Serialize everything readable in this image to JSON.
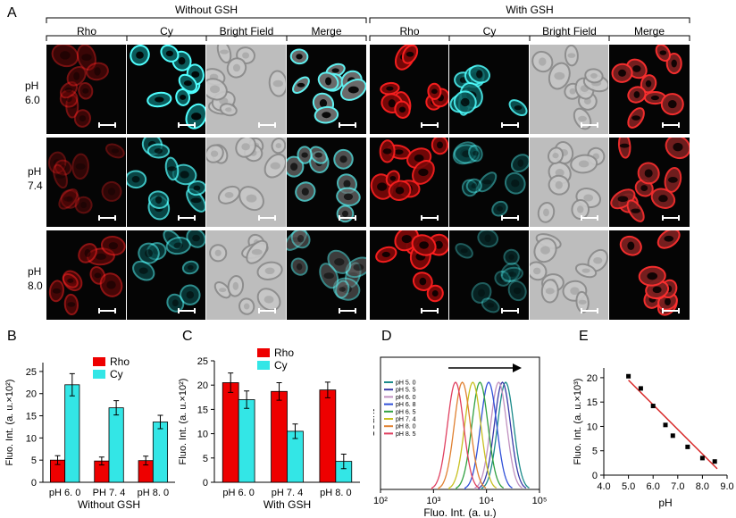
{
  "panel_letters": {
    "a": "A",
    "b": "B",
    "c": "C",
    "d": "D",
    "e": "E"
  },
  "groups": {
    "without": "Without GSH",
    "with": "With GSH"
  },
  "columns": [
    "Rho",
    "Cy",
    "Bright Field",
    "Merge",
    "Rho",
    "Cy",
    "Bright Field",
    "Merge"
  ],
  "rows": [
    {
      "label_top": "pH",
      "label_bot": "6.0"
    },
    {
      "label_top": "pH",
      "label_bot": "7.4"
    },
    {
      "label_top": "pH",
      "label_bot": "8.0"
    }
  ],
  "colors": {
    "rho": "#ee0000",
    "cy": "#33e6e6",
    "fit": "#d62020"
  },
  "chart_data": [
    {
      "panel": "B",
      "type": "bar",
      "categories": [
        "pH 6. 0",
        "PH 7. 4",
        "pH 8. 0"
      ],
      "series": [
        {
          "name": "Rho",
          "values": [
            5.0,
            4.8,
            4.9
          ],
          "errors": [
            1.0,
            0.9,
            1.0
          ]
        },
        {
          "name": "Cy",
          "values": [
            22.0,
            16.8,
            13.6
          ],
          "errors": [
            2.5,
            1.6,
            1.5
          ]
        }
      ],
      "ylabel": "Fluo. Int. (a. u.×10²)",
      "xlabel": "Without GSH",
      "ylim": [
        0,
        27
      ],
      "yticks": [
        "0",
        "5",
        "10",
        "15",
        "20",
        "25"
      ]
    },
    {
      "panel": "C",
      "type": "bar",
      "categories": [
        "pH 6. 0",
        "pH 7. 4",
        "pH 8. 0"
      ],
      "series": [
        {
          "name": "Rho",
          "values": [
            20.5,
            18.7,
            19.0
          ],
          "errors": [
            2.0,
            1.8,
            1.6
          ]
        },
        {
          "name": "Cy",
          "values": [
            17.0,
            10.5,
            4.3
          ],
          "errors": [
            1.8,
            1.5,
            1.5
          ]
        }
      ],
      "ylabel": "Fluo. Int. (a. u.×10²)",
      "xlabel": "With GSH",
      "ylim": [
        0,
        25
      ],
      "yticks": [
        "0",
        "5",
        "10",
        "15",
        "20",
        "25"
      ]
    },
    {
      "panel": "D",
      "type": "line",
      "series": [
        {
          "name": "pH 5. 0",
          "color": "#1a8a8a",
          "peak": 23000
        },
        {
          "name": "pH 5. 5",
          "color": "#3a3aa8",
          "peak": 20000
        },
        {
          "name": "pH 6. 0",
          "color": "#c090c0",
          "peak": 17000
        },
        {
          "name": "pH 6. 8",
          "color": "#3050d8",
          "peak": 11000
        },
        {
          "name": "pH 6. 5",
          "color": "#30a040",
          "peak": 7500
        },
        {
          "name": "pH 7. 4",
          "color": "#c8c020",
          "peak": 5500
        },
        {
          "name": "pH 8. 0",
          "color": "#e08030",
          "peak": 3500
        },
        {
          "name": "pH 8. 5",
          "color": "#e04060",
          "peak": 2600
        }
      ],
      "xlabel": "Fluo. Int. (a. u.)",
      "ylabel": "Count",
      "xticks": [
        "10²",
        "10³",
        "10⁴",
        "10⁵"
      ],
      "xscale": "log",
      "xlim": [
        100,
        100000
      ]
    },
    {
      "panel": "E",
      "type": "scatter",
      "x": [
        5.0,
        5.5,
        6.0,
        6.5,
        6.8,
        7.4,
        8.0,
        8.5
      ],
      "y": [
        20.3,
        17.8,
        14.2,
        10.3,
        8.1,
        5.8,
        3.5,
        2.8
      ],
      "fit": {
        "x": [
          5.0,
          8.6
        ],
        "y": [
          19.5,
          1.3
        ]
      },
      "xlabel": "pH",
      "ylabel": "Fluo. Int. (a. u.×10³)",
      "xlim": [
        4.0,
        9.0
      ],
      "ylim": [
        0,
        22
      ],
      "xticks": [
        "4.0",
        "5.0",
        "6.0",
        "7.0",
        "8.0",
        "9.0"
      ],
      "yticks": [
        "0",
        "5",
        "10",
        "15",
        "20"
      ]
    }
  ]
}
